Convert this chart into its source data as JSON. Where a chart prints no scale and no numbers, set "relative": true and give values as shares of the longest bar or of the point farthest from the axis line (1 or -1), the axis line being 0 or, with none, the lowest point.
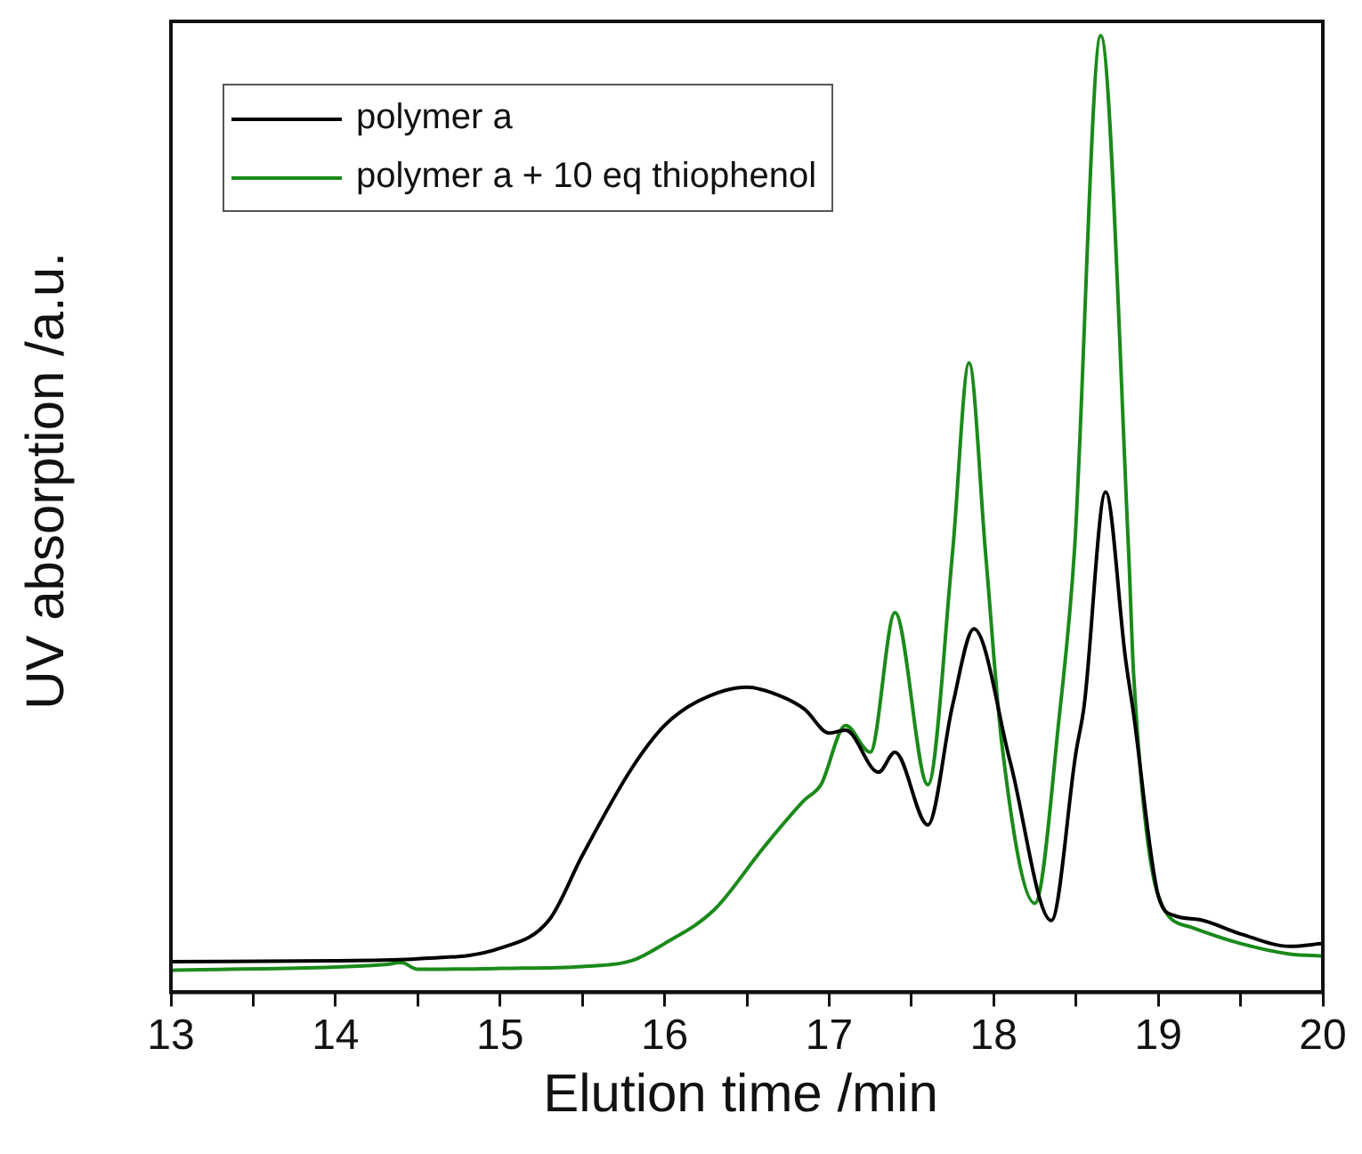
{
  "chart_data": {
    "type": "line",
    "xlabel": "Elution time /min",
    "ylabel": "UV absorption /a.u.",
    "relative": true,
    "xlim": [
      13,
      20
    ],
    "xticks": [
      13,
      {
        "value": 13.5,
        "label": null
      },
      14,
      {
        "value": 14.5,
        "label": null
      },
      15,
      {
        "value": 15.5,
        "label": null
      },
      16,
      {
        "value": 16.5,
        "label": null
      },
      17,
      {
        "value": 17.5,
        "label": null
      },
      18,
      {
        "value": 18.5,
        "label": null
      },
      19,
      {
        "value": 19.5,
        "label": null
      },
      20
    ],
    "legend": "top left",
    "grid": false,
    "marker": "none",
    "line_style": "solid",
    "series": [
      {
        "name": "polymer a",
        "color": "#000000",
        "x": [
          13,
          14,
          14.5,
          15,
          15.3,
          15.5,
          15.8,
          16,
          16.2,
          16.5,
          16.7,
          16.85,
          17,
          17.1,
          17.3,
          17.4,
          17.6,
          17.75,
          17.88,
          18.1,
          18.35,
          18.5,
          18.55,
          18.68,
          18.8,
          18.85,
          19,
          19.1,
          19.25,
          19.5,
          19.8,
          20
        ],
        "values": [
          0.032,
          0.033,
          0.035,
          0.046,
          0.076,
          0.143,
          0.234,
          0.279,
          0.304,
          0.319,
          0.31,
          0.296,
          0.271,
          0.274,
          0.23,
          0.251,
          0.175,
          0.3,
          0.38,
          0.241,
          0.075,
          0.251,
          0.3,
          0.523,
          0.35,
          0.291,
          0.101,
          0.08,
          0.076,
          0.061,
          0.048,
          0.051
        ]
      },
      {
        "name": "polymer a + 10 eq thiophenol",
        "color": "#1a8a1a",
        "x": [
          13,
          14.3,
          14.4,
          14.5,
          15,
          15.5,
          15.8,
          16,
          16.3,
          16.6,
          16.85,
          16.95,
          17.1,
          17.25,
          17.4,
          17.6,
          17.75,
          17.85,
          17.95,
          18.05,
          18.25,
          18.4,
          18.49,
          18.65,
          18.82,
          18.85,
          19,
          19.2,
          19.5,
          19.8,
          20
        ],
        "values": [
          0.023,
          0.029,
          0.031,
          0.024,
          0.025,
          0.027,
          0.033,
          0.051,
          0.086,
          0.151,
          0.201,
          0.217,
          0.279,
          0.251,
          0.397,
          0.217,
          0.46,
          0.658,
          0.46,
          0.259,
          0.093,
          0.291,
          0.46,
          1,
          0.46,
          0.333,
          0.101,
          0.068,
          0.051,
          0.04,
          0.038
        ]
      }
    ]
  }
}
